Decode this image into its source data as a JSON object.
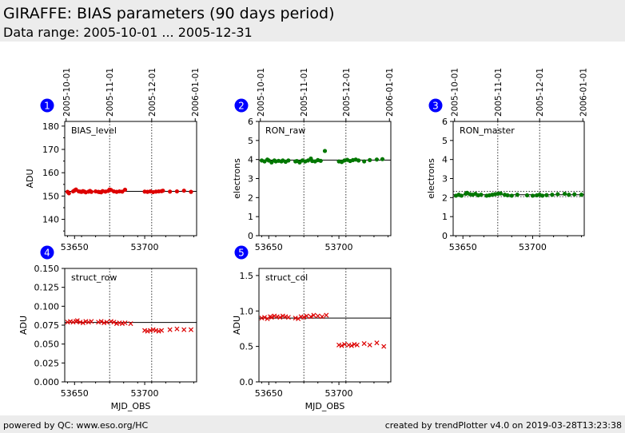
{
  "header": {
    "title": "GIRAFFE: BIAS parameters (90 days period)",
    "subtitle": "Data range: 2005-10-01 ... 2005-12-31"
  },
  "footer": {
    "left": "powered by QC: www.eso.org/HC",
    "right": "created by trendPlotter v4.0 on 2019-03-28T13:23:38"
  },
  "colors": {
    "red": "#dd0000",
    "green": "#007700",
    "badge": "#0000ff"
  },
  "chart_data": [
    {
      "badge": "1",
      "type": "scatter",
      "title": "",
      "annotation": "BIAS_level",
      "ylabel": "ADU",
      "xlabel": "",
      "xlim": [
        53643,
        53737
      ],
      "ylim": [
        133,
        182
      ],
      "yticks": [
        140,
        150,
        160,
        170,
        180
      ],
      "yticklabels": [
        "140",
        "150",
        "160",
        "170",
        "180"
      ],
      "xticks": [
        53650,
        53700
      ],
      "xticklabels": [
        "53650",
        "53700"
      ],
      "show_xticklabels": true,
      "date_ticks": [
        {
          "x": 53644,
          "label": "2005-10-01"
        },
        {
          "x": 53675,
          "label": "2005-11-01"
        },
        {
          "x": 53705,
          "label": "2005-12-01"
        },
        {
          "x": 53736,
          "label": "2006-01-01"
        }
      ],
      "marker": "circle",
      "color": "#dd0000",
      "ref_lines": [
        152
      ],
      "series": [
        {
          "x": [
            53645,
            53646,
            53649,
            53650,
            53651,
            53653,
            53654,
            53655,
            53656,
            53657,
            53658,
            53660,
            53661,
            53662,
            53665,
            53667,
            53668,
            53669,
            53670,
            53672,
            53674,
            53675,
            53676,
            53678,
            53680,
            53682,
            53684,
            53686,
            53700,
            53702,
            53704,
            53706,
            53708,
            53710,
            53712,
            53713,
            53718,
            53723,
            53728,
            53733
          ],
          "y": [
            151.8,
            151.2,
            152.0,
            152.4,
            152.8,
            152.0,
            151.9,
            151.8,
            152.1,
            151.9,
            151.6,
            151.9,
            152.2,
            151.8,
            152.0,
            151.8,
            151.7,
            151.6,
            152.1,
            151.9,
            152.2,
            152.8,
            152.6,
            152.0,
            151.8,
            152.0,
            151.9,
            152.7,
            151.9,
            151.8,
            152.0,
            151.7,
            151.9,
            152.0,
            152.1,
            152.3,
            151.9,
            152.0,
            152.3,
            151.8
          ]
        }
      ]
    },
    {
      "badge": "2",
      "type": "scatter",
      "title": "",
      "annotation": "RON_raw",
      "ylabel": "electrons",
      "xlabel": "",
      "xlim": [
        53643,
        53737
      ],
      "ylim": [
        0,
        6
      ],
      "yticks": [
        0,
        1,
        2,
        3,
        4,
        5,
        6
      ],
      "yticklabels": [
        "0",
        "1",
        "2",
        "3",
        "4",
        "5",
        "6"
      ],
      "xticks": [
        53650,
        53700
      ],
      "xticklabels": [
        "53650",
        "53700"
      ],
      "show_xticklabels": true,
      "date_ticks": [
        {
          "x": 53644,
          "label": "2005-10-01"
        },
        {
          "x": 53675,
          "label": "2005-11-01"
        },
        {
          "x": 53705,
          "label": "2005-12-01"
        },
        {
          "x": 53736,
          "label": "2006-01-01"
        }
      ],
      "marker": "circle",
      "color": "#007700",
      "ref_lines": [
        3.97
      ],
      "series": [
        {
          "x": [
            53645,
            53647,
            53649,
            53650,
            53652,
            53654,
            53655,
            53657,
            53659,
            53660,
            53662,
            53664,
            53669,
            53670,
            53672,
            53674,
            53676,
            53678,
            53680,
            53681,
            53683,
            53685,
            53687,
            53690,
            53700,
            53702,
            53704,
            53706,
            53708,
            53710,
            53712,
            53714,
            53718,
            53722,
            53727,
            53731
          ],
          "y": [
            3.95,
            3.9,
            4.0,
            3.95,
            3.85,
            3.95,
            3.9,
            3.93,
            3.9,
            3.95,
            3.88,
            3.95,
            3.9,
            3.92,
            3.85,
            3.95,
            3.9,
            3.95,
            4.05,
            3.92,
            3.9,
            3.97,
            3.93,
            4.45,
            3.9,
            3.87,
            3.95,
            3.98,
            3.92,
            3.97,
            4.0,
            3.95,
            3.9,
            3.97,
            4.0,
            4.02
          ]
        }
      ]
    },
    {
      "badge": "3",
      "type": "scatter",
      "title": "",
      "annotation": "RON_master",
      "ylabel": "electrons",
      "xlabel": "",
      "xlim": [
        53643,
        53737
      ],
      "ylim": [
        0,
        6
      ],
      "yticks": [
        0,
        1,
        2,
        3,
        4,
        5,
        6
      ],
      "yticklabels": [
        "0",
        "1",
        "2",
        "3",
        "4",
        "5",
        "6"
      ],
      "xticks": [
        53650,
        53700
      ],
      "xticklabels": [
        "53650",
        "53700"
      ],
      "show_xticklabels": true,
      "date_ticks": [
        {
          "x": 53644,
          "label": "2005-10-01"
        },
        {
          "x": 53675,
          "label": "2005-11-01"
        },
        {
          "x": 53705,
          "label": "2005-12-01"
        },
        {
          "x": 53736,
          "label": "2006-01-01"
        }
      ],
      "marker": "circle",
      "color": "#007700",
      "ref_lines": [
        2.15
      ],
      "dashed_lines": [
        2.05,
        2.32
      ],
      "series": [
        {
          "x": [
            53645,
            53647,
            53649,
            53652,
            53653,
            53655,
            53657,
            53659,
            53661,
            53663,
            53667,
            53669,
            53671,
            53673,
            53675,
            53677,
            53680,
            53682,
            53685,
            53689,
            53696,
            53700,
            53703,
            53705,
            53707,
            53710,
            53714,
            53718,
            53723,
            53726,
            53730,
            53735
          ],
          "y": [
            2.1,
            2.15,
            2.1,
            2.2,
            2.25,
            2.18,
            2.15,
            2.2,
            2.12,
            2.15,
            2.1,
            2.12,
            2.15,
            2.18,
            2.2,
            2.22,
            2.15,
            2.12,
            2.1,
            2.15,
            2.12,
            2.1,
            2.12,
            2.15,
            2.1,
            2.13,
            2.15,
            2.18,
            2.2,
            2.15,
            2.17,
            2.15
          ]
        }
      ]
    },
    {
      "badge": "4",
      "type": "scatter",
      "title": "",
      "annotation": "struct_row",
      "ylabel": "ADU",
      "xlabel": "MJD_OBS",
      "xlim": [
        53643,
        53737
      ],
      "ylim": [
        0,
        0.15
      ],
      "yticks": [
        0,
        0.025,
        0.05,
        0.075,
        0.1,
        0.125,
        0.15
      ],
      "yticklabels": [
        "0.000",
        "0.025",
        "0.050",
        "0.075",
        "0.100",
        "0.125",
        "0.150"
      ],
      "xticks": [
        53650,
        53700
      ],
      "xticklabels": [
        "53650",
        "53700"
      ],
      "show_xticklabels": true,
      "date_ticks": [
        {
          "x": 53644,
          "label": ""
        },
        {
          "x": 53675,
          "label": ""
        },
        {
          "x": 53705,
          "label": ""
        },
        {
          "x": 53736,
          "label": ""
        }
      ],
      "marker": "cross",
      "color": "#dd0000",
      "ref_lines": [
        0.0785
      ],
      "series": [
        {
          "x": [
            53645,
            53647,
            53649,
            53651,
            53652,
            53654,
            53656,
            53658,
            53660,
            53662,
            53667,
            53669,
            53671,
            53673,
            53676,
            53678,
            53680,
            53682,
            53684,
            53686,
            53690,
            53700,
            53702,
            53704,
            53706,
            53708,
            53710,
            53712,
            53718,
            53723,
            53728,
            53733
          ],
          "y": [
            0.079,
            0.08,
            0.079,
            0.08,
            0.081,
            0.079,
            0.078,
            0.08,
            0.079,
            0.08,
            0.079,
            0.08,
            0.078,
            0.079,
            0.08,
            0.079,
            0.077,
            0.078,
            0.077,
            0.078,
            0.077,
            0.068,
            0.067,
            0.068,
            0.069,
            0.068,
            0.067,
            0.068,
            0.069,
            0.07,
            0.069,
            0.069
          ]
        }
      ]
    },
    {
      "badge": "5",
      "type": "scatter",
      "title": "",
      "annotation": "struct_col",
      "ylabel": "ADU",
      "xlabel": "MJD_OBS",
      "xlim": [
        53643,
        53737
      ],
      "ylim": [
        0,
        1.6
      ],
      "yticks": [
        0,
        0.5,
        1.0,
        1.5
      ],
      "yticklabels": [
        "0.0",
        "0.5",
        "1.0",
        "1.5"
      ],
      "xticks": [
        53650,
        53700
      ],
      "xticklabels": [
        "53650",
        "53700"
      ],
      "show_xticklabels": true,
      "date_ticks": [
        {
          "x": 53644,
          "label": ""
        },
        {
          "x": 53675,
          "label": ""
        },
        {
          "x": 53705,
          "label": ""
        },
        {
          "x": 53736,
          "label": ""
        }
      ],
      "marker": "cross",
      "color": "#dd0000",
      "ref_lines": [
        0.9
      ],
      "series": [
        {
          "x": [
            53645,
            53647,
            53649,
            53651,
            53652,
            53654,
            53656,
            53658,
            53660,
            53662,
            53664,
            53669,
            53671,
            53673,
            53675,
            53677,
            53680,
            53682,
            53685,
            53688,
            53691,
            53700,
            53702,
            53704,
            53707,
            53709,
            53711,
            53713,
            53718,
            53722,
            53727,
            53732
          ],
          "y": [
            0.9,
            0.91,
            0.89,
            0.92,
            0.91,
            0.93,
            0.92,
            0.91,
            0.93,
            0.92,
            0.91,
            0.9,
            0.89,
            0.92,
            0.91,
            0.93,
            0.92,
            0.94,
            0.93,
            0.92,
            0.94,
            0.52,
            0.51,
            0.53,
            0.52,
            0.51,
            0.53,
            0.52,
            0.54,
            0.52,
            0.55,
            0.5
          ]
        }
      ]
    }
  ]
}
